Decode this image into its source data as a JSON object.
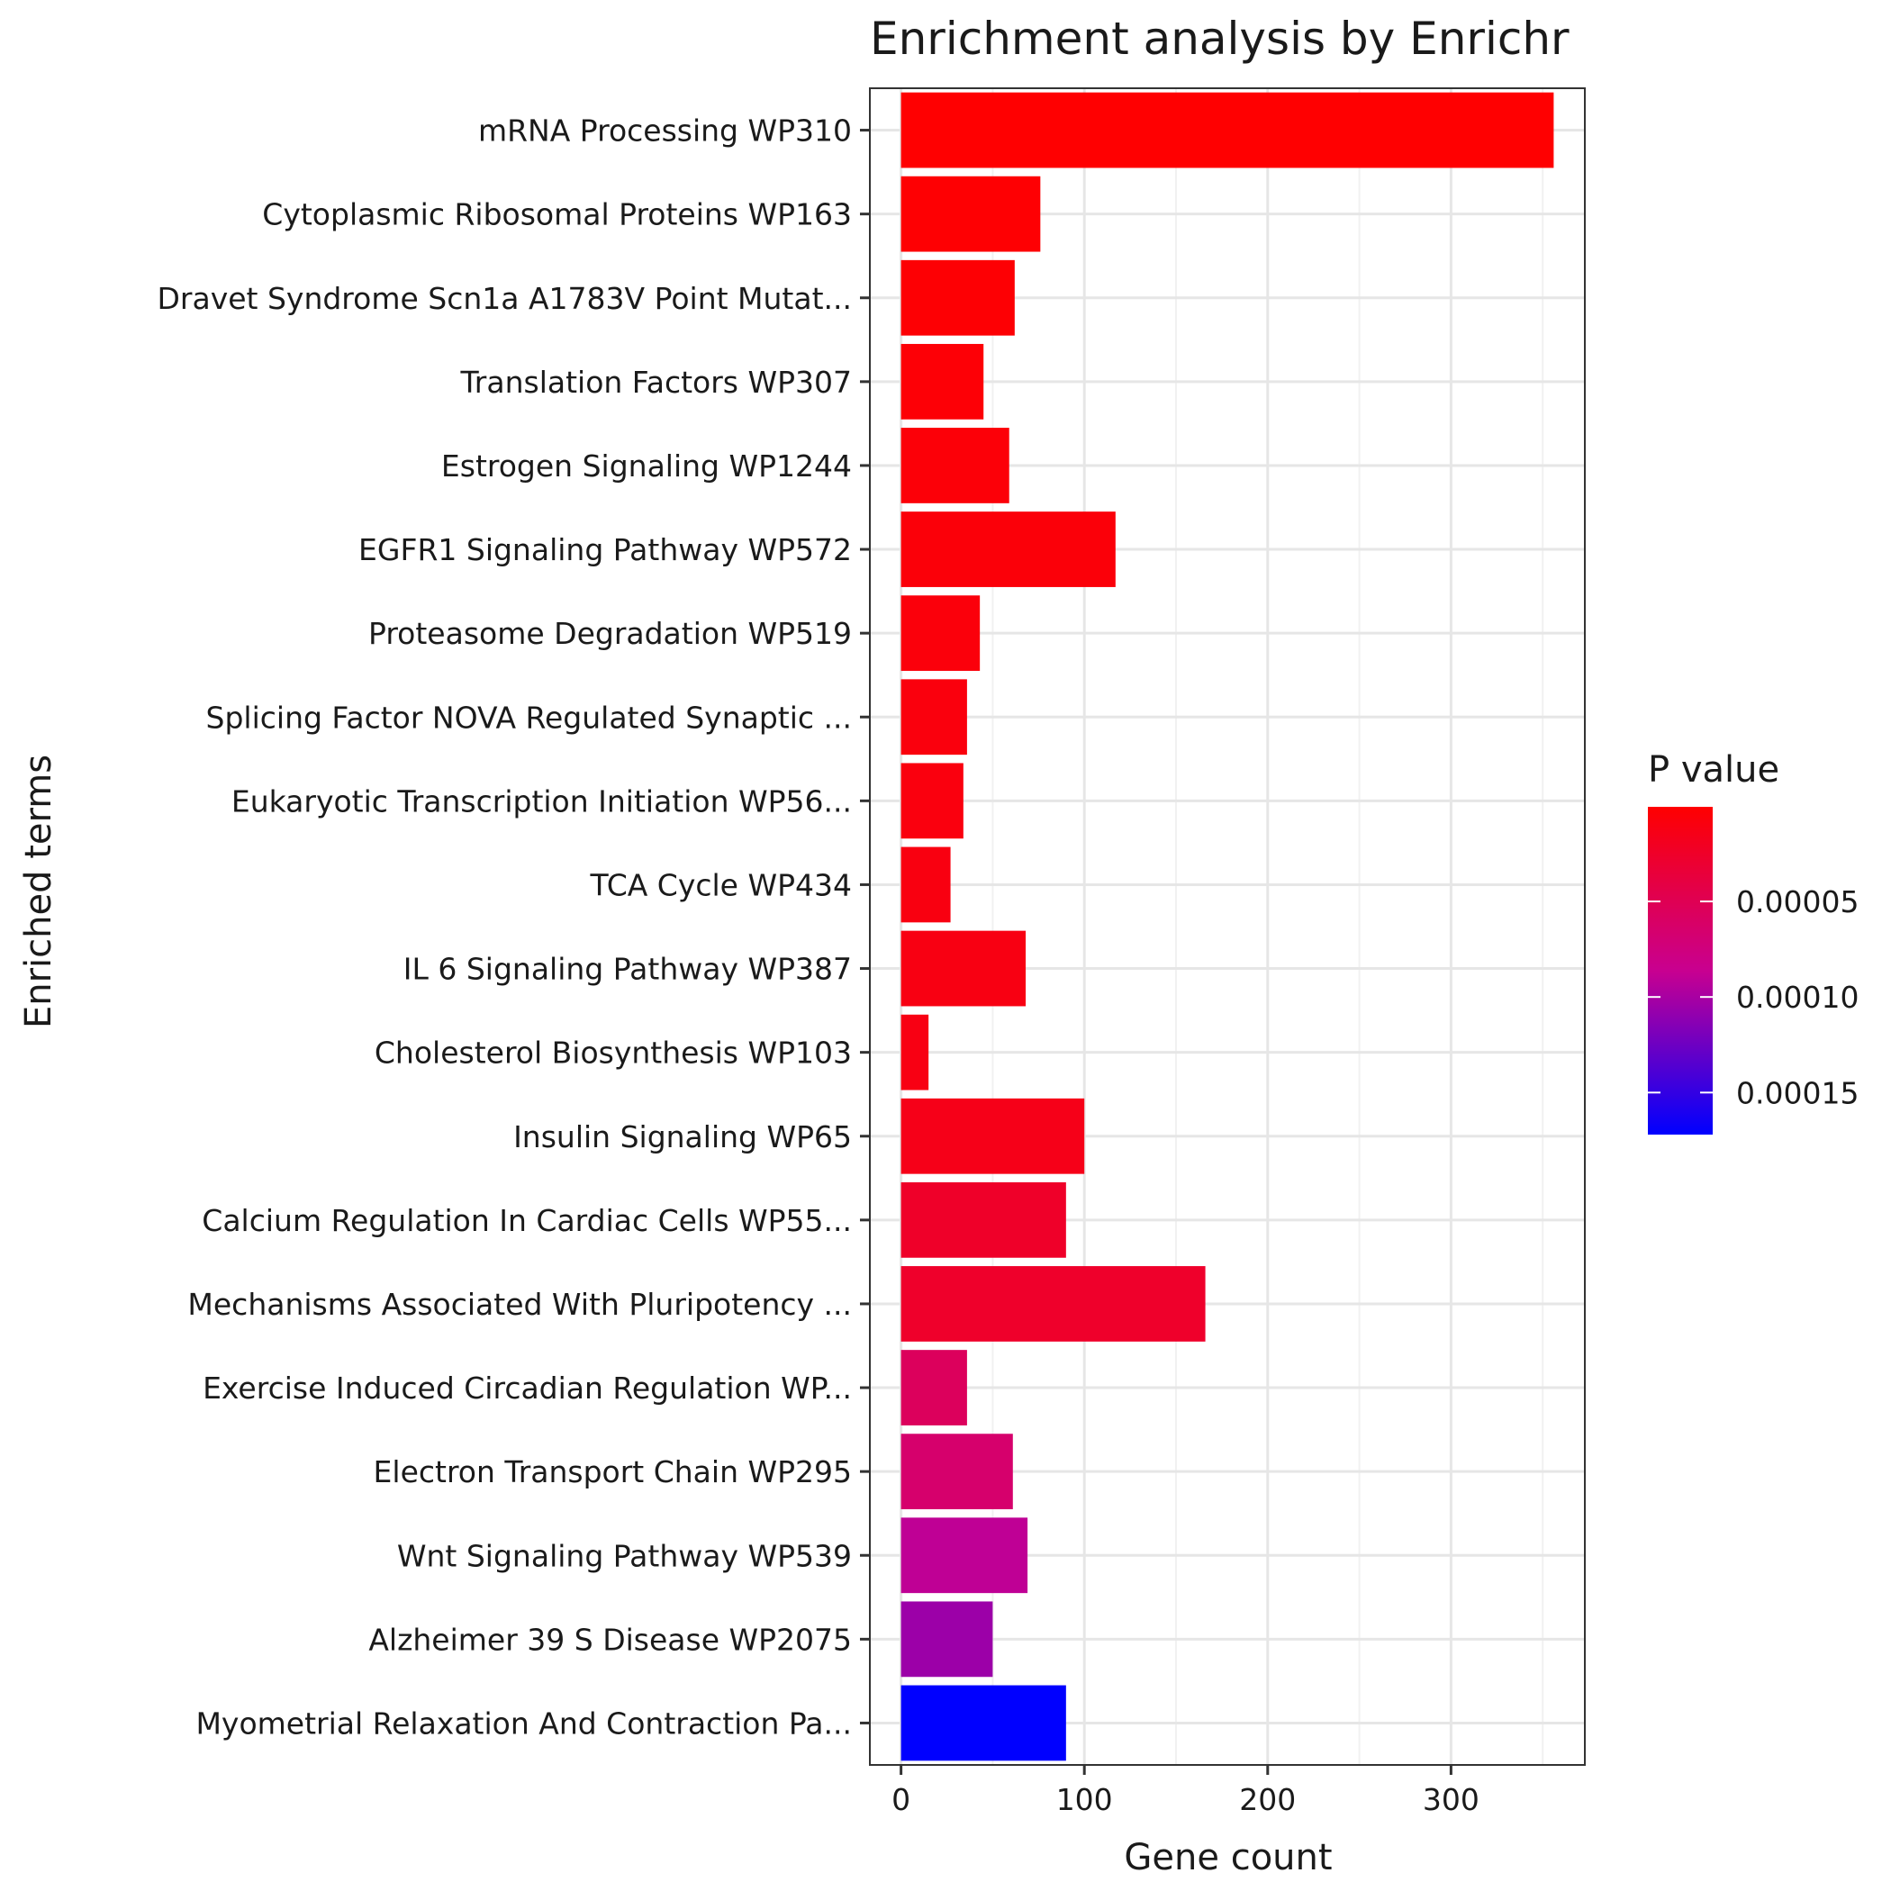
{
  "chart_data": {
    "type": "bar",
    "orientation": "horizontal",
    "title": "Enrichment analysis by Enrichr",
    "xlabel": "Gene count",
    "ylabel": "Enriched terms",
    "xlim": [
      -17,
      373
    ],
    "xticks": [
      0,
      100,
      200,
      300
    ],
    "grid": true,
    "legend": {
      "title": "P value",
      "placement": "right",
      "ticks": [
        {
          "value": 5e-05,
          "label": "0.00005"
        },
        {
          "value": 0.0001,
          "label": "0.00010"
        },
        {
          "value": 0.00015,
          "label": "0.00015"
        }
      ],
      "range": [
        5e-07,
        0.000172
      ],
      "color_low": "#ff0000",
      "color_high": "#0000ff"
    },
    "categories": [
      "mRNA Processing WP310",
      "Cytoplasmic Ribosomal Proteins WP163",
      "Dravet Syndrome Scn1a A1783V Point Mutat...",
      "Translation Factors WP307",
      "Estrogen Signaling WP1244",
      "EGFR1 Signaling Pathway WP572",
      "Proteasome Degradation WP519",
      "Splicing Factor NOVA Regulated Synaptic ...",
      "Eukaryotic Transcription Initiation WP56...",
      "TCA Cycle WP434",
      "IL 6 Signaling Pathway WP387",
      "Cholesterol Biosynthesis WP103",
      "Insulin Signaling WP65",
      "Calcium Regulation In Cardiac Cells WP55...",
      "Mechanisms Associated With Pluripotency ...",
      "Exercise Induced Circadian Regulation WP...",
      "Electron Transport Chain WP295",
      "Wnt Signaling Pathway WP539",
      "Alzheimer 39 S Disease WP2075",
      "Myometrial Relaxation And Contraction Pa..."
    ],
    "values": [
      356,
      76,
      62,
      45,
      59,
      117,
      43,
      36,
      34,
      27,
      68,
      15,
      100,
      90,
      166,
      36,
      61,
      69,
      50,
      90
    ],
    "pvalues": [
      1e-06,
      2e-06,
      3e-06,
      4e-06,
      5e-06,
      6e-06,
      7e-06,
      8e-06,
      9e-06,
      1e-05,
      1.1e-05,
      1.2e-05,
      1.5e-05,
      2.5e-05,
      2.6e-05,
      5.5e-05,
      6.5e-05,
      9e-05,
      0.000105,
      0.000172
    ]
  }
}
